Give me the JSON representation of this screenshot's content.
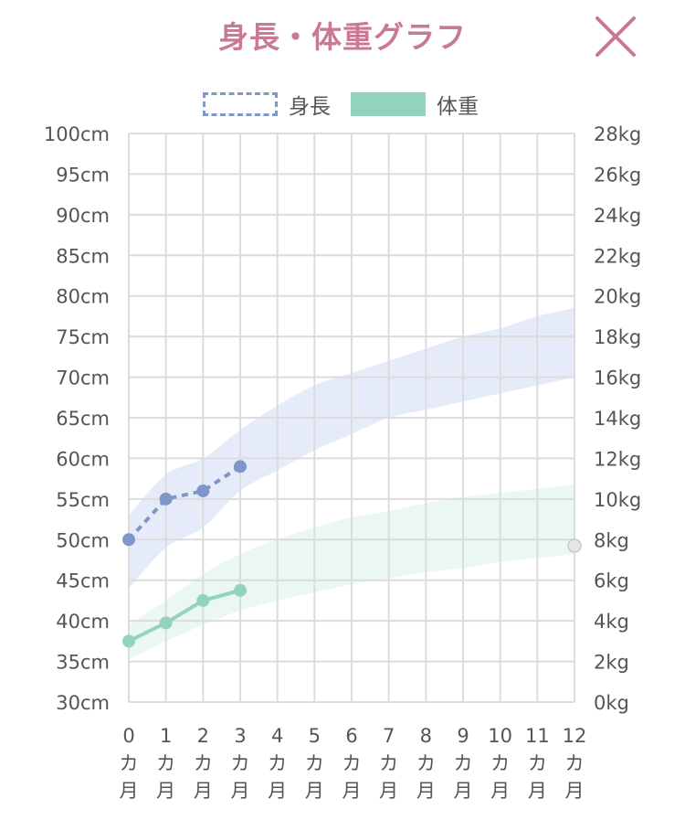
{
  "header": {
    "title": "身長・体重グラフ",
    "title_color": "#c97a93",
    "close_icon": "close-icon",
    "close_color": "#c97a93"
  },
  "legend": {
    "items": [
      {
        "label": "身長",
        "style": "dashed-outline",
        "color": "#7e97c8"
      },
      {
        "label": "体重",
        "style": "filled",
        "color": "#93d3bb"
      }
    ]
  },
  "chart_data": {
    "type": "line",
    "grid": true,
    "legend_position": "top-center",
    "x": [
      0,
      1,
      2,
      3,
      4,
      5,
      6,
      7,
      8,
      9,
      10,
      11,
      12
    ],
    "x_tick_labels": [
      [
        "0",
        "カ",
        "月"
      ],
      [
        "1",
        "カ",
        "月"
      ],
      [
        "2",
        "カ",
        "月"
      ],
      [
        "3",
        "カ",
        "月"
      ],
      [
        "4",
        "カ",
        "月"
      ],
      [
        "5",
        "カ",
        "月"
      ],
      [
        "6",
        "カ",
        "月"
      ],
      [
        "7",
        "カ",
        "月"
      ],
      [
        "8",
        "カ",
        "月"
      ],
      [
        "9",
        "カ",
        "月"
      ],
      [
        "10",
        "カ",
        "月"
      ],
      [
        "11",
        "カ",
        "月"
      ],
      [
        "12",
        "カ",
        "月"
      ]
    ],
    "xlim": [
      0,
      12
    ],
    "y_left": {
      "ylim": [
        30,
        100
      ],
      "ticks": [
        "30cm",
        "35cm",
        "40cm",
        "45cm",
        "50cm",
        "55cm",
        "60cm",
        "65cm",
        "70cm",
        "75cm",
        "80cm",
        "85cm",
        "90cm",
        "95cm",
        "100cm"
      ]
    },
    "y_right": {
      "ylim": [
        0,
        28
      ],
      "ticks": [
        "0kg",
        "2kg",
        "4kg",
        "6kg",
        "8kg",
        "10kg",
        "12kg",
        "14kg",
        "16kg",
        "18kg",
        "20kg",
        "22kg",
        "24kg",
        "26kg",
        "28kg"
      ]
    },
    "series": [
      {
        "name": "身長",
        "axis": "left",
        "line_style": "dashed",
        "color": "#7e97c8",
        "x": [
          0,
          1,
          2,
          3
        ],
        "values": [
          50,
          55,
          56,
          59
        ]
      },
      {
        "name": "体重",
        "axis": "right",
        "line_style": "solid",
        "color": "#93d3bb",
        "x": [
          0,
          1,
          2,
          3
        ],
        "values": [
          3.0,
          3.9,
          5.0,
          5.5
        ]
      }
    ],
    "bands": [
      {
        "axis": "left",
        "color": "#dde4f7",
        "x": [
          0,
          1,
          2,
          3,
          4,
          5,
          6,
          7,
          8,
          9,
          10,
          11,
          12
        ],
        "lower": [
          44,
          49,
          51.5,
          56,
          58.5,
          61,
          63,
          65,
          66,
          67,
          68,
          69,
          70
        ],
        "upper": [
          53,
          58,
          60,
          63.5,
          66.5,
          69,
          70.5,
          72,
          73.5,
          75,
          76,
          77.5,
          78.5
        ]
      },
      {
        "axis": "right",
        "color": "#e3f4ed",
        "x": [
          0,
          1,
          2,
          3,
          4,
          5,
          6,
          7,
          8,
          9,
          10,
          11,
          12
        ],
        "lower": [
          2.1,
          3.0,
          3.8,
          4.5,
          5.0,
          5.4,
          5.8,
          6.1,
          6.4,
          6.6,
          6.9,
          7.1,
          7.3
        ],
        "upper": [
          3.8,
          5.0,
          6.3,
          7.3,
          8.0,
          8.6,
          9.1,
          9.4,
          9.8,
          10.1,
          10.3,
          10.5,
          10.7
        ]
      }
    ],
    "markers": [
      {
        "axis": "right",
        "x": 12,
        "value": 7.7,
        "color": "#e6e6e6",
        "stroke": "#c8c8c8"
      }
    ],
    "colors": {
      "grid": "#dcdcdc",
      "axis_text": "#555555"
    }
  }
}
